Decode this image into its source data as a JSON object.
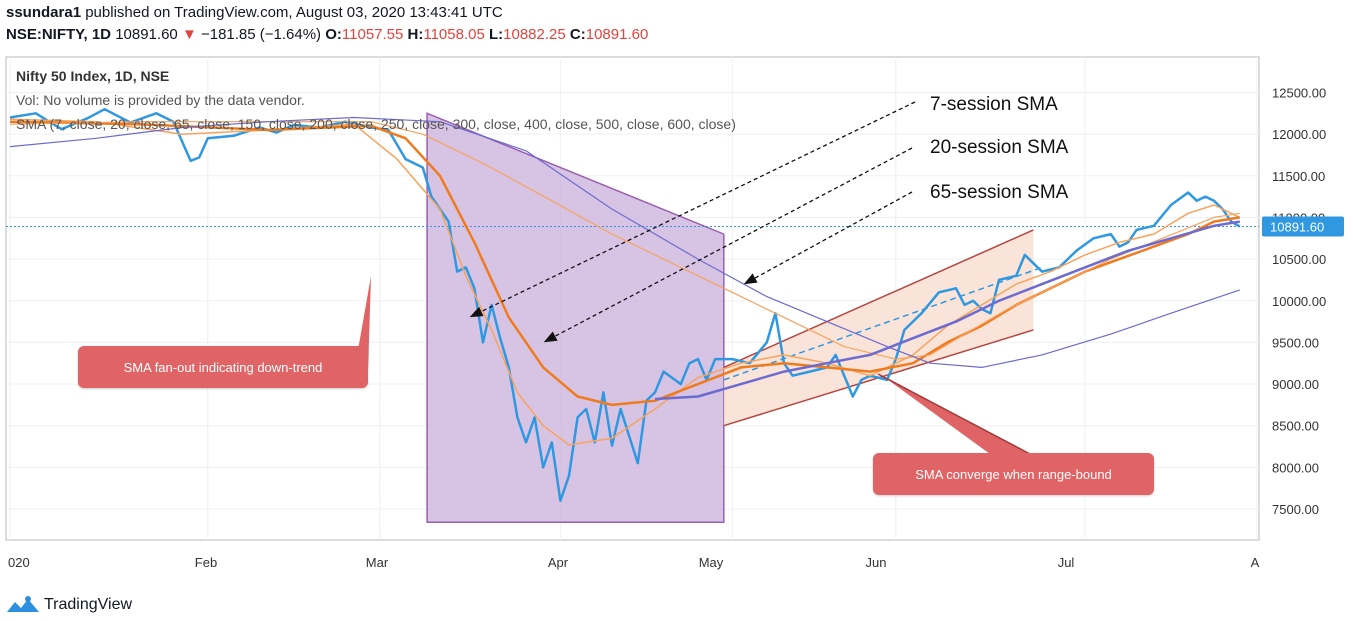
{
  "header": {
    "publisher": "ssundara1",
    "published_text": " published on TradingView.com, August 03, 2020 13:43:41 UTC",
    "symbol": "NSE:NIFTY, 1D",
    "last": "10891.60",
    "down_arrow": "▼",
    "change": "−181.85 (−1.64%)",
    "o_label": "O:",
    "o_value": "11057.55",
    "h_label": "H:",
    "h_value": "11058.05",
    "l_label": "L:",
    "l_value": "10882.25",
    "c_label": "C:",
    "c_value": "10891.60"
  },
  "legend": {
    "title": "Nifty 50 Index, 1D, NSE",
    "vol": "Vol: No volume is provided by the data vendor.",
    "sma": "SMA (7, close, 20, close, 65, close, 150, close, 200, close, 250, close, 300, close, 400, close, 500, close, 600, close)"
  },
  "annotations": {
    "sma7": "7-session SMA",
    "sma20": "20-session SMA",
    "sma65": "65-session SMA",
    "fanout": "SMA fan-out indicating down-trend",
    "converge": "SMA converge when range-bound"
  },
  "brand": {
    "name": "TradingView",
    "icon": "tradingview-logo-icon"
  },
  "colors": {
    "price": "#2f98e0",
    "sma7": "#f7a35c",
    "sma20": "#f07b1e",
    "sma65": "#a287c8",
    "sma_long": "#6b6bd0",
    "shade_down": "#c9b0dc",
    "shade_range": "#f9ddd0",
    "channel": "#b5453f",
    "callout": "#e06466"
  },
  "chart_data": {
    "type": "line",
    "title": "Nifty 50 Index, 1D, NSE",
    "x_ticks": [
      "020",
      "Feb",
      "Mar",
      "Apr",
      "May",
      "Jun",
      "Jul",
      "A"
    ],
    "y_ticks": [
      12500,
      12000,
      11500,
      11000,
      10500,
      10000,
      9500,
      9000,
      8500,
      8000,
      7500
    ],
    "ylim": [
      7000,
      12800
    ],
    "last_price": "10891.60",
    "series": [
      {
        "name": "price",
        "points": [
          [
            0,
            12200
          ],
          [
            6,
            12250
          ],
          [
            12,
            12060
          ],
          [
            18,
            12190
          ],
          [
            22,
            12300
          ],
          [
            28,
            12140
          ],
          [
            34,
            12250
          ],
          [
            38,
            12150
          ],
          [
            42,
            11680
          ],
          [
            44,
            11720
          ],
          [
            46,
            11950
          ],
          [
            52,
            11980
          ],
          [
            58,
            12080
          ],
          [
            62,
            12020
          ],
          [
            66,
            12110
          ],
          [
            72,
            12080
          ],
          [
            78,
            12150
          ],
          [
            84,
            12080
          ],
          [
            88,
            12050
          ],
          [
            92,
            11700
          ],
          [
            96,
            11600
          ],
          [
            98,
            11250
          ],
          [
            100,
            11100
          ],
          [
            102,
            10950
          ],
          [
            104,
            10350
          ],
          [
            106,
            10400
          ],
          [
            108,
            10150
          ],
          [
            110,
            9500
          ],
          [
            112,
            9950
          ],
          [
            114,
            9550
          ],
          [
            116,
            9200
          ],
          [
            118,
            8600
          ],
          [
            120,
            8300
          ],
          [
            122,
            8600
          ],
          [
            124,
            8000
          ],
          [
            126,
            8300
          ],
          [
            128,
            7600
          ],
          [
            130,
            7900
          ],
          [
            132,
            8600
          ],
          [
            134,
            8700
          ],
          [
            136,
            8300
          ],
          [
            138,
            8900
          ],
          [
            140,
            8260
          ],
          [
            142,
            8700
          ],
          [
            146,
            8050
          ],
          [
            148,
            8800
          ],
          [
            150,
            8900
          ],
          [
            152,
            9150
          ],
          [
            156,
            9000
          ],
          [
            158,
            9250
          ],
          [
            160,
            9300
          ],
          [
            162,
            9050
          ],
          [
            164,
            9300
          ],
          [
            168,
            9300
          ],
          [
            172,
            9250
          ],
          [
            176,
            9500
          ],
          [
            178,
            9850
          ],
          [
            180,
            9250
          ],
          [
            182,
            9100
          ],
          [
            186,
            9150
          ],
          [
            190,
            9200
          ],
          [
            192,
            9350
          ],
          [
            194,
            9100
          ],
          [
            196,
            8850
          ],
          [
            198,
            9050
          ],
          [
            200,
            9100
          ],
          [
            204,
            9050
          ],
          [
            206,
            9300
          ],
          [
            208,
            9650
          ],
          [
            212,
            9850
          ],
          [
            216,
            10100
          ],
          [
            220,
            10150
          ],
          [
            222,
            9950
          ],
          [
            224,
            10000
          ],
          [
            226,
            9900
          ],
          [
            228,
            9850
          ],
          [
            230,
            10250
          ],
          [
            234,
            10300
          ],
          [
            236,
            10550
          ],
          [
            238,
            10450
          ],
          [
            240,
            10350
          ],
          [
            244,
            10400
          ],
          [
            248,
            10600
          ],
          [
            252,
            10750
          ],
          [
            256,
            10800
          ],
          [
            258,
            10650
          ],
          [
            260,
            10700
          ],
          [
            262,
            10850
          ],
          [
            266,
            10900
          ],
          [
            270,
            11150
          ],
          [
            274,
            11300
          ],
          [
            276,
            11200
          ],
          [
            278,
            11250
          ],
          [
            280,
            11200
          ],
          [
            282,
            11100
          ],
          [
            284,
            10950
          ],
          [
            286,
            10890
          ]
        ]
      },
      {
        "name": "sma7",
        "points": [
          [
            0,
            12180
          ],
          [
            20,
            12150
          ],
          [
            40,
            12000
          ],
          [
            60,
            12050
          ],
          [
            80,
            12120
          ],
          [
            90,
            11700
          ],
          [
            100,
            11100
          ],
          [
            106,
            10300
          ],
          [
            112,
            9650
          ],
          [
            118,
            8900
          ],
          [
            124,
            8500
          ],
          [
            130,
            8270
          ],
          [
            140,
            8350
          ],
          [
            150,
            8700
          ],
          [
            160,
            9080
          ],
          [
            170,
            9250
          ],
          [
            180,
            9350
          ],
          [
            190,
            9250
          ],
          [
            200,
            9100
          ],
          [
            210,
            9350
          ],
          [
            218,
            9700
          ],
          [
            226,
            9950
          ],
          [
            234,
            10200
          ],
          [
            242,
            10350
          ],
          [
            250,
            10550
          ],
          [
            258,
            10700
          ],
          [
            266,
            10800
          ],
          [
            274,
            11050
          ],
          [
            280,
            11150
          ],
          [
            286,
            11000
          ]
        ]
      },
      {
        "name": "sma20",
        "points": [
          [
            0,
            12150
          ],
          [
            30,
            12120
          ],
          [
            60,
            12050
          ],
          [
            84,
            12100
          ],
          [
            92,
            11950
          ],
          [
            100,
            11500
          ],
          [
            108,
            10700
          ],
          [
            116,
            9800
          ],
          [
            124,
            9200
          ],
          [
            132,
            8850
          ],
          [
            140,
            8750
          ],
          [
            150,
            8800
          ],
          [
            160,
            9000
          ],
          [
            170,
            9200
          ],
          [
            180,
            9250
          ],
          [
            190,
            9200
          ],
          [
            200,
            9150
          ],
          [
            210,
            9250
          ],
          [
            218,
            9500
          ],
          [
            226,
            9700
          ],
          [
            234,
            9950
          ],
          [
            242,
            10150
          ],
          [
            250,
            10350
          ],
          [
            258,
            10500
          ],
          [
            266,
            10650
          ],
          [
            274,
            10800
          ],
          [
            280,
            10950
          ],
          [
            286,
            11000
          ]
        ]
      },
      {
        "name": "sma65",
        "points": [
          [
            0,
            12120
          ],
          [
            30,
            12150
          ],
          [
            60,
            12150
          ],
          [
            84,
            12150
          ],
          [
            96,
            12000
          ],
          [
            110,
            11650
          ],
          [
            126,
            11200
          ],
          [
            140,
            10800
          ],
          [
            156,
            10400
          ],
          [
            170,
            10050
          ],
          [
            182,
            9750
          ],
          [
            194,
            9450
          ],
          [
            206,
            9300
          ],
          [
            214,
            9350
          ],
          [
            222,
            9600
          ],
          [
            232,
            9900
          ],
          [
            244,
            10200
          ],
          [
            256,
            10500
          ],
          [
            268,
            10750
          ],
          [
            280,
            11000
          ],
          [
            286,
            11050
          ]
        ]
      },
      {
        "name": "sma_long_1",
        "points": [
          [
            150,
            8820
          ],
          [
            160,
            8850
          ],
          [
            170,
            9000
          ],
          [
            180,
            9150
          ],
          [
            190,
            9250
          ],
          [
            200,
            9350
          ],
          [
            210,
            9550
          ],
          [
            220,
            9750
          ],
          [
            230,
            10000
          ],
          [
            240,
            10200
          ],
          [
            250,
            10400
          ],
          [
            260,
            10600
          ],
          [
            270,
            10750
          ],
          [
            280,
            10900
          ],
          [
            286,
            10950
          ]
        ]
      },
      {
        "name": "sma_long_2",
        "points": [
          [
            0,
            11850
          ],
          [
            20,
            11950
          ],
          [
            40,
            12080
          ],
          [
            60,
            12150
          ],
          [
            80,
            12200
          ],
          [
            100,
            12150
          ],
          [
            120,
            11800
          ],
          [
            140,
            11100
          ],
          [
            160,
            10500
          ],
          [
            176,
            10050
          ],
          [
            190,
            9750
          ],
          [
            204,
            9450
          ],
          [
            214,
            9250
          ],
          [
            226,
            9200
          ],
          [
            240,
            9350
          ],
          [
            256,
            9600
          ],
          [
            270,
            9850
          ],
          [
            286,
            10130
          ]
        ]
      }
    ],
    "shapes": {
      "down_trend_polygon": [
        [
          97,
          12250
        ],
        [
          166,
          10800
        ],
        [
          166,
          7340
        ],
        [
          97,
          7340
        ]
      ],
      "range_channel_upper": [
        [
          166,
          9200
        ],
        [
          238,
          10850
        ]
      ],
      "range_channel_lower": [
        [
          166,
          8500
        ],
        [
          238,
          9650
        ]
      ],
      "range_midline_dashed": [
        [
          166,
          9050
        ],
        [
          240,
          10400
        ]
      ]
    }
  }
}
